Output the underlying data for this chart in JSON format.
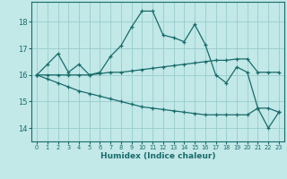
{
  "xlabel": "Humidex (Indice chaleur)",
  "bg_color": "#c2e8e8",
  "grid_color": "#99cccc",
  "line_color": "#1a6b6b",
  "xlim": [
    -0.5,
    23.5
  ],
  "ylim": [
    13.5,
    18.75
  ],
  "yticks": [
    14,
    15,
    16,
    17,
    18
  ],
  "xticks": [
    0,
    1,
    2,
    3,
    4,
    5,
    6,
    7,
    8,
    9,
    10,
    11,
    12,
    13,
    14,
    15,
    16,
    17,
    18,
    19,
    20,
    21,
    22,
    23
  ],
  "line1_x": [
    0,
    1,
    2,
    3,
    4,
    5,
    6,
    7,
    8,
    9,
    10,
    11,
    12,
    13,
    14,
    15,
    16,
    17,
    18,
    19,
    20,
    21,
    22,
    23
  ],
  "line1_y": [
    16.0,
    16.4,
    16.8,
    16.1,
    16.4,
    16.0,
    16.1,
    16.7,
    17.1,
    17.8,
    18.4,
    18.4,
    17.5,
    17.4,
    17.25,
    17.9,
    17.15,
    16.0,
    15.7,
    16.3,
    16.1,
    14.75,
    14.0,
    14.6
  ],
  "line2_x": [
    0,
    1,
    2,
    3,
    4,
    5,
    6,
    7,
    8,
    9,
    10,
    11,
    12,
    13,
    14,
    15,
    16,
    17,
    18,
    19,
    20,
    21,
    22,
    23
  ],
  "line2_y": [
    16.0,
    16.0,
    16.0,
    16.0,
    16.0,
    16.0,
    16.05,
    16.1,
    16.1,
    16.15,
    16.2,
    16.25,
    16.3,
    16.35,
    16.4,
    16.45,
    16.5,
    16.55,
    16.55,
    16.6,
    16.6,
    16.1,
    16.1,
    16.1
  ],
  "line3_x": [
    0,
    1,
    2,
    3,
    4,
    5,
    6,
    7,
    8,
    9,
    10,
    11,
    12,
    13,
    14,
    15,
    16,
    17,
    18,
    19,
    20,
    21,
    22,
    23
  ],
  "line3_y": [
    16.0,
    15.85,
    15.7,
    15.55,
    15.4,
    15.3,
    15.2,
    15.1,
    15.0,
    14.9,
    14.8,
    14.75,
    14.7,
    14.65,
    14.6,
    14.55,
    14.5,
    14.5,
    14.5,
    14.5,
    14.5,
    14.75,
    14.75,
    14.6
  ]
}
